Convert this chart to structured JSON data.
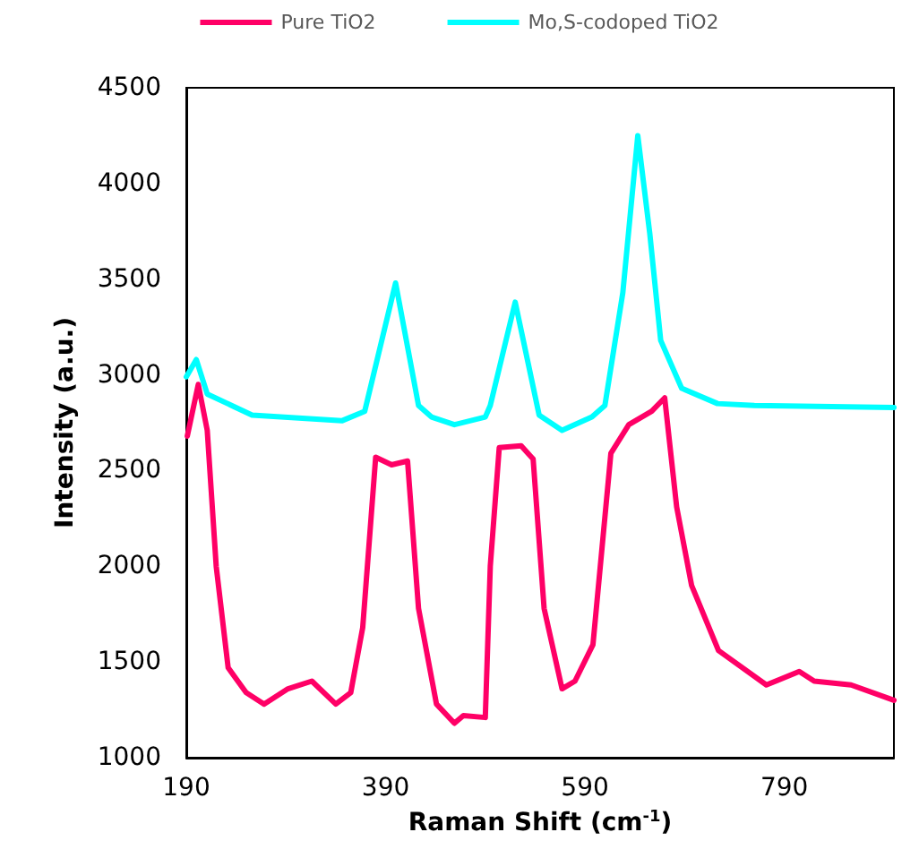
{
  "chart_data": {
    "type": "line",
    "xlabel": "Raman Shift (cm$^{-1}$)",
    "ylabel": "Intensity (a.u.)",
    "xlim": [
      190,
      900
    ],
    "xticks": [
      190,
      390,
      590,
      790
    ],
    "ylim": [
      1000,
      4500
    ],
    "yticks": [
      1000,
      1500,
      2000,
      2500,
      3000,
      3500,
      4000,
      4500
    ],
    "grid": false,
    "legend": "top",
    "marker": "none",
    "line_style": "solid",
    "series": [
      {
        "name": "Pure TiO2",
        "color": "#ff0066",
        "x": [
          191,
          202,
          211,
          220,
          232,
          250,
          268,
          292,
          316,
          340,
          355,
          367,
          380,
          396,
          412,
          423,
          441,
          459,
          468,
          490,
          495,
          504,
          526,
          538,
          549,
          567,
          580,
          598,
          616,
          634,
          657,
          670,
          682,
          697,
          724,
          772,
          805,
          820,
          857,
          900
        ],
        "values": [
          2680,
          2950,
          2710,
          2000,
          1470,
          1340,
          1280,
          1360,
          1400,
          1280,
          1340,
          1680,
          2570,
          2530,
          2550,
          1780,
          1280,
          1180,
          1220,
          1210,
          2000,
          2620,
          2630,
          2560,
          1780,
          1360,
          1400,
          1590,
          2590,
          2740,
          2810,
          2880,
          2310,
          1900,
          1560,
          1380,
          1450,
          1400,
          1380,
          1300
        ]
      },
      {
        "name": "Mo,S-codoped TiO2",
        "color": "#00ffff",
        "x": [
          190,
          200,
          211,
          256,
          346,
          369,
          400,
          423,
          436,
          459,
          490,
          495,
          520,
          544,
          567,
          597,
          610,
          628,
          643,
          655,
          666,
          687,
          723,
          760,
          900
        ],
        "values": [
          2990,
          3080,
          2900,
          2790,
          2760,
          2810,
          3480,
          2840,
          2780,
          2740,
          2780,
          2840,
          3380,
          2790,
          2710,
          2780,
          2840,
          3430,
          4250,
          3740,
          3180,
          2930,
          2850,
          2840,
          2830
        ]
      }
    ]
  }
}
